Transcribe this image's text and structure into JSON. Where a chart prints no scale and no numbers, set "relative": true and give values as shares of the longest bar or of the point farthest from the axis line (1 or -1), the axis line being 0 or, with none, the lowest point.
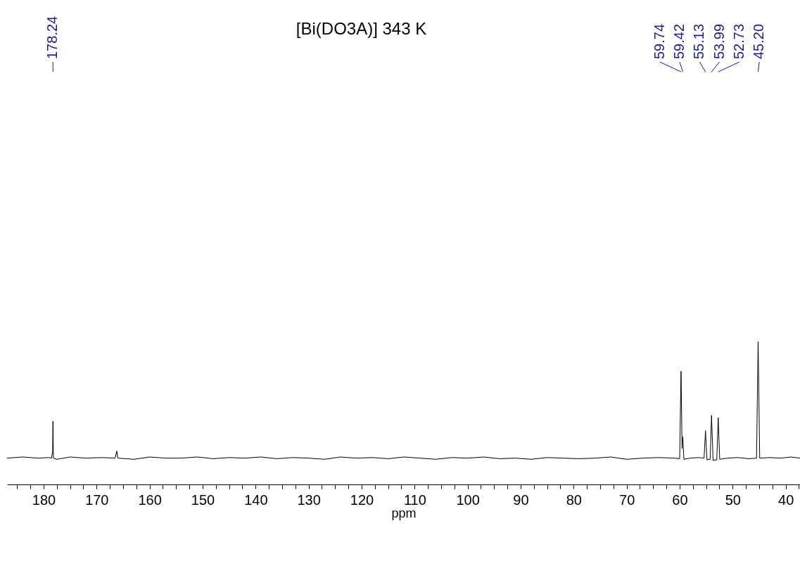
{
  "chart_data": {
    "type": "line",
    "title": "[Bi(DO3A)]    343 K",
    "xlabel": "ppm",
    "relative": true,
    "grid": false,
    "marker": "none",
    "line_style": "solid",
    "xlim": [
      186.9,
      37.3
    ],
    "xticks": [
      {
        "value": 185,
        "label": null
      },
      {
        "value": 182.5,
        "label": null
      },
      180,
      {
        "value": 177.5,
        "label": null
      },
      {
        "value": 175,
        "label": null
      },
      {
        "value": 172.5,
        "label": null
      },
      170,
      {
        "value": 167.5,
        "label": null
      },
      {
        "value": 165,
        "label": null
      },
      {
        "value": 162.5,
        "label": null
      },
      160,
      {
        "value": 157.5,
        "label": null
      },
      {
        "value": 155,
        "label": null
      },
      {
        "value": 152.5,
        "label": null
      },
      150,
      {
        "value": 147.5,
        "label": null
      },
      {
        "value": 145,
        "label": null
      },
      {
        "value": 142.5,
        "label": null
      },
      140,
      {
        "value": 137.5,
        "label": null
      },
      {
        "value": 135,
        "label": null
      },
      {
        "value": 132.5,
        "label": null
      },
      130,
      {
        "value": 127.5,
        "label": null
      },
      {
        "value": 125,
        "label": null
      },
      {
        "value": 122.5,
        "label": null
      },
      120,
      {
        "value": 117.5,
        "label": null
      },
      {
        "value": 115,
        "label": null
      },
      {
        "value": 112.5,
        "label": null
      },
      110,
      {
        "value": 107.5,
        "label": null
      },
      {
        "value": 105,
        "label": null
      },
      {
        "value": 102.5,
        "label": null
      },
      100,
      {
        "value": 97.5,
        "label": null
      },
      {
        "value": 95,
        "label": null
      },
      {
        "value": 92.5,
        "label": null
      },
      90,
      {
        "value": 87.5,
        "label": null
      },
      {
        "value": 85,
        "label": null
      },
      {
        "value": 82.5,
        "label": null
      },
      80,
      {
        "value": 77.5,
        "label": null
      },
      {
        "value": 75,
        "label": null
      },
      {
        "value": 72.5,
        "label": null
      },
      70,
      {
        "value": 67.5,
        "label": null
      },
      {
        "value": 65,
        "label": null
      },
      {
        "value": 62.5,
        "label": null
      },
      60,
      {
        "value": 57.5,
        "label": null
      },
      {
        "value": 55,
        "label": null
      },
      {
        "value": 52.5,
        "label": null
      },
      50,
      {
        "value": 47.5,
        "label": null
      },
      {
        "value": 45,
        "label": null
      },
      {
        "value": 42.5,
        "label": null
      },
      40,
      {
        "value": 37.5,
        "label": null
      }
    ],
    "series": [
      {
        "color": "#000000",
        "x": [
          186.9,
          184,
          181,
          179,
          178.5,
          178.3,
          178.24,
          178.15,
          177.5,
          175,
          172,
          169,
          166.5,
          166.2,
          166.0,
          163,
          160,
          157,
          154,
          151,
          148,
          145,
          142,
          139,
          136,
          133,
          130,
          127,
          124,
          121,
          118,
          115,
          112,
          109,
          106,
          103,
          100,
          97,
          94,
          91,
          88,
          85,
          82,
          79,
          76,
          73,
          70,
          67,
          64,
          61,
          60.0,
          59.74,
          59.55,
          59.42,
          59.2,
          58,
          56.5,
          55.4,
          55.13,
          54.85,
          54.25,
          53.99,
          53.7,
          53.0,
          52.73,
          52.45,
          51,
          49,
          47,
          45.5,
          45.2,
          44.9,
          43,
          41,
          39,
          37.3
        ],
        "values": [
          0.184,
          0.192,
          0.184,
          0.188,
          0.184,
          0.234,
          0.442,
          0.184,
          0.176,
          0.192,
          0.184,
          0.188,
          0.184,
          0.234,
          0.184,
          0.176,
          0.192,
          0.184,
          0.184,
          0.192,
          0.18,
          0.188,
          0.184,
          0.192,
          0.18,
          0.188,
          0.184,
          0.176,
          0.192,
          0.184,
          0.188,
          0.18,
          0.192,
          0.184,
          0.176,
          0.188,
          0.184,
          0.192,
          0.18,
          0.184,
          0.176,
          0.188,
          0.184,
          0.18,
          0.184,
          0.192,
          0.176,
          0.184,
          0.188,
          0.184,
          0.18,
          0.792,
          0.251,
          0.334,
          0.176,
          0.184,
          0.188,
          0.184,
          0.376,
          0.172,
          0.176,
          0.484,
          0.168,
          0.172,
          0.467,
          0.176,
          0.184,
          0.188,
          0.18,
          0.184,
          1,
          0.184,
          0.188,
          0.184,
          0.192,
          0.184
        ]
      }
    ],
    "annotations": [
      {
        "text": "178.24",
        "x": 178.24
      },
      {
        "text": "59.74",
        "x": 59.74
      },
      {
        "text": "59.42",
        "x": 59.42
      },
      {
        "text": "55.13",
        "x": 55.13
      },
      {
        "text": "53.99",
        "x": 53.99
      },
      {
        "text": "52.73",
        "x": 52.73
      },
      {
        "text": "45.20",
        "x": 45.2
      }
    ]
  }
}
